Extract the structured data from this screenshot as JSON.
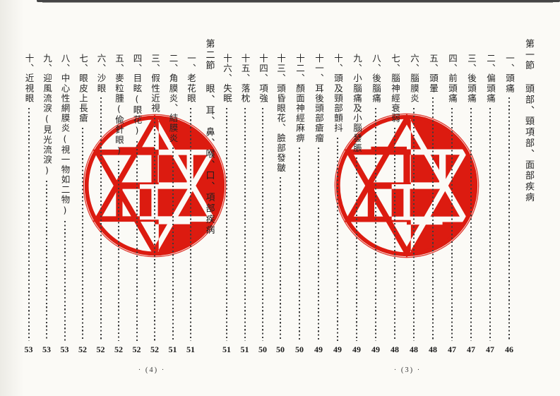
{
  "colors": {
    "seal_red": "#dc1b10",
    "leader_dots": "#3d3d3d",
    "text": "#262626"
  },
  "pages": [
    {
      "footer": "· (3) ·",
      "columns": [
        {
          "type": "heading",
          "text": "第一節 頭部、頸項部、面部疾病"
        },
        {
          "type": "item",
          "text": "一、頭痛",
          "page": "46"
        },
        {
          "type": "item",
          "text": "二、偏頭痛",
          "page": "47"
        },
        {
          "type": "item",
          "text": "三、後頭痛",
          "page": "47"
        },
        {
          "type": "item",
          "text": "四、前頭痛",
          "page": "47"
        },
        {
          "type": "item",
          "text": "五、頭暈",
          "page": "48"
        },
        {
          "type": "item",
          "text": "六、腦膜炎",
          "page": "48"
        },
        {
          "type": "item",
          "text": "七、腦神經衰弱",
          "page": "48"
        },
        {
          "type": "item",
          "text": "八、後腦痛",
          "page": "49"
        },
        {
          "type": "item",
          "text": "九、小腦痛及小腦發脹",
          "page": "49"
        },
        {
          "type": "item",
          "text": "十、頭及頸部顫抖",
          "page": "49"
        },
        {
          "type": "item",
          "text": "十一、耳後頭部瘡瘤",
          "page": "49"
        },
        {
          "type": "item",
          "text": "十二、顏面神經麻痹",
          "page": "50"
        },
        {
          "type": "item",
          "text": "十三、頭昏眼花、臉部發皺",
          "page": "50"
        }
      ]
    },
    {
      "footer": "· (4) ·",
      "columns": [
        {
          "type": "item",
          "text": "十四、項強",
          "page": "50"
        },
        {
          "type": "item",
          "text": "十五、落枕",
          "page": "51"
        },
        {
          "type": "item",
          "text": "十六、失眠",
          "page": "51"
        },
        {
          "type": "heading",
          "text": "第二節 眼、耳、鼻、喉、口、項部疾病"
        },
        {
          "type": "item",
          "text": "一、老花眼",
          "page": "51"
        },
        {
          "type": "item",
          "text": "二、角膜炎、結膜炎",
          "page": "51"
        },
        {
          "type": "item",
          "text": "三、假性近視",
          "page": "52"
        },
        {
          "type": "item",
          "text": "四、目眩(眼花)",
          "page": "52"
        },
        {
          "type": "item",
          "text": "五、麥粒腫(偸針眼)",
          "page": "52"
        },
        {
          "type": "item",
          "text": "六、沙眼",
          "page": "52"
        },
        {
          "type": "item",
          "text": "七、眼皮上長瘡",
          "page": "52"
        },
        {
          "type": "item",
          "text": "八、中心性網膜炎(視一物如二物)",
          "page": "53"
        },
        {
          "type": "item",
          "text": "九、迎風流淚(見光流淚)",
          "page": "53"
        },
        {
          "type": "item",
          "text": "十、近視眼",
          "page": "53"
        }
      ]
    }
  ]
}
